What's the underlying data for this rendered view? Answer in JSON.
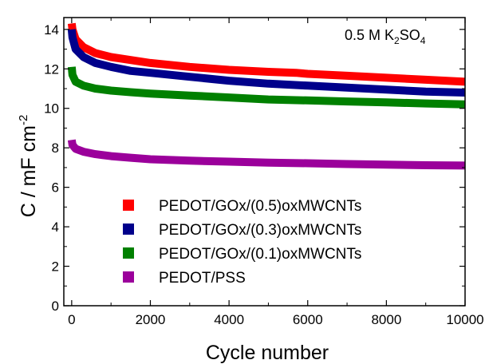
{
  "chart_data": {
    "type": "line",
    "xlabel": "Cycle number",
    "ylabel_main": "C / mF cm",
    "ylabel_sup": "-2",
    "annotation": {
      "main": "0.5 M K",
      "sub1": "2",
      "mid": "SO",
      "sub2": "4"
    },
    "xlim": [
      -200,
      10000
    ],
    "ylim": [
      0,
      14.6
    ],
    "xticks": [
      0,
      2000,
      4000,
      6000,
      8000,
      10000
    ],
    "xtick_labels": [
      "0",
      "2000",
      "4000",
      "6000",
      "8000",
      "10000"
    ],
    "yticks": [
      0,
      2,
      4,
      6,
      8,
      10,
      12,
      14
    ],
    "ytick_labels": [
      "0",
      "2",
      "4",
      "6",
      "8",
      "10",
      "12",
      "14"
    ],
    "legend_position": "bottom-left",
    "series": [
      {
        "name": "PEDOT/GOx/(0.5)oxMWCNTs",
        "color": "#ff0000",
        "x": [
          0,
          20,
          100,
          300,
          600,
          1000,
          1500,
          2000,
          3000,
          4000,
          5000,
          5700,
          6000,
          7000,
          8000,
          9000,
          10000
        ],
        "y": [
          14.3,
          14.0,
          13.5,
          13.1,
          12.8,
          12.6,
          12.45,
          12.3,
          12.1,
          11.95,
          11.85,
          11.8,
          11.75,
          11.65,
          11.55,
          11.45,
          11.35
        ]
      },
      {
        "name": "PEDOT/GOx/(0.3)oxMWCNTs",
        "color": "#00008b",
        "x": [
          0,
          20,
          100,
          300,
          600,
          1000,
          1500,
          2000,
          3000,
          4000,
          5000,
          6000,
          7000,
          8000,
          9000,
          10000
        ],
        "y": [
          14.0,
          13.6,
          13.0,
          12.6,
          12.3,
          12.1,
          11.9,
          11.8,
          11.6,
          11.4,
          11.25,
          11.15,
          11.05,
          10.95,
          10.85,
          10.8
        ]
      },
      {
        "name": "PEDOT/GOx/(0.1)oxMWCNTs",
        "color": "#008000",
        "x": [
          0,
          20,
          100,
          300,
          600,
          1000,
          1500,
          2000,
          3000,
          4000,
          5000,
          6000,
          7000,
          8000,
          9000,
          10000
        ],
        "y": [
          12.1,
          11.7,
          11.35,
          11.15,
          11.0,
          10.9,
          10.82,
          10.75,
          10.65,
          10.55,
          10.45,
          10.4,
          10.35,
          10.3,
          10.25,
          10.2
        ]
      },
      {
        "name": "PEDOT/PSS",
        "color": "#9b009b",
        "x": [
          0,
          20,
          100,
          300,
          600,
          1000,
          1500,
          2000,
          3000,
          4000,
          5000,
          6000,
          7000,
          8000,
          9000,
          10000
        ],
        "y": [
          8.4,
          8.15,
          7.95,
          7.8,
          7.68,
          7.58,
          7.5,
          7.42,
          7.35,
          7.3,
          7.25,
          7.22,
          7.18,
          7.15,
          7.12,
          7.1
        ]
      }
    ]
  }
}
